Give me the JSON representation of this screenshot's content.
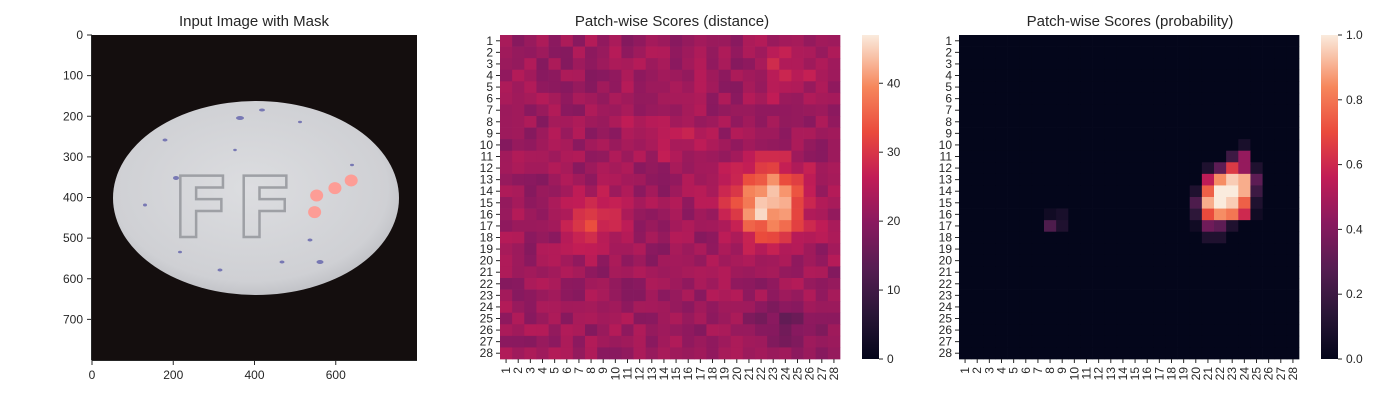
{
  "figure": {
    "panels": [
      {
        "title": "Input Image with Mask"
      },
      {
        "title": "Patch-wise Scores (distance)"
      },
      {
        "title": "Patch-wise Scores (probability)"
      }
    ]
  },
  "chart_data": [
    {
      "type": "image",
      "title": "Input Image with Mask",
      "xlabel": "",
      "ylabel": "",
      "xlim": [
        0,
        800
      ],
      "ylim": [
        800,
        0
      ],
      "xticks": [
        "0",
        "200",
        "400",
        "600"
      ],
      "yticks": [
        "0",
        "100",
        "200",
        "300",
        "400",
        "500",
        "600",
        "700"
      ],
      "image_content": {
        "pill_text": "FF",
        "mask_points": [
          [
            553,
            395
          ],
          [
            598,
            377
          ],
          [
            638,
            358
          ],
          [
            548,
            436
          ]
        ],
        "colors": {
          "background": "#140e0e",
          "pill": "#d2d3d6",
          "mask": "#ff9a92"
        }
      }
    },
    {
      "type": "heatmap",
      "title": "Patch-wise Scores (distance)",
      "rows": 28,
      "cols": 28,
      "xticks": [
        "1",
        "2",
        "3",
        "4",
        "5",
        "6",
        "7",
        "8",
        "9",
        "10",
        "11",
        "12",
        "13",
        "14",
        "15",
        "16",
        "17",
        "18",
        "19",
        "20",
        "21",
        "22",
        "23",
        "24",
        "25",
        "26",
        "27",
        "28"
      ],
      "yticks": [
        "1",
        "2",
        "3",
        "4",
        "5",
        "6",
        "7",
        "8",
        "9",
        "10",
        "11",
        "12",
        "13",
        "14",
        "15",
        "16",
        "17",
        "18",
        "19",
        "20",
        "21",
        "22",
        "23",
        "24",
        "25",
        "26",
        "27",
        "28"
      ],
      "colorbar": {
        "min": 0,
        "max": 47,
        "ticks": [
          "0",
          "10",
          "20",
          "30",
          "40"
        ]
      },
      "base_value": 22,
      "hotspots": [
        {
          "row": 15,
          "col": 22.5,
          "sigma_r": 2.2,
          "sigma_c": 2.0,
          "amplitude": 24
        },
        {
          "row": 16.5,
          "col": 8.3,
          "sigma_r": 1.5,
          "sigma_c": 1.6,
          "amplitude": 9
        },
        {
          "row": 9,
          "col": 14,
          "sigma_r": 1.5,
          "sigma_c": 2.0,
          "amplitude": 5
        },
        {
          "row": 25.5,
          "col": 24,
          "sigma_r": 1.4,
          "sigma_c": 2.0,
          "amplitude": -5
        },
        {
          "row": 4,
          "col": 24,
          "sigma_r": 1.5,
          "sigma_c": 1.5,
          "amplitude": 6
        }
      ],
      "noise_amplitude": 3
    },
    {
      "type": "heatmap",
      "title": "Patch-wise Scores (probability)",
      "rows": 28,
      "cols": 28,
      "xticks": [
        "1",
        "2",
        "3",
        "4",
        "5",
        "6",
        "7",
        "8",
        "9",
        "10",
        "11",
        "12",
        "13",
        "14",
        "15",
        "16",
        "17",
        "18",
        "19",
        "20",
        "21",
        "22",
        "23",
        "24",
        "25",
        "26",
        "27",
        "28"
      ],
      "yticks": [
        "1",
        "2",
        "3",
        "4",
        "5",
        "6",
        "7",
        "8",
        "9",
        "10",
        "11",
        "12",
        "13",
        "14",
        "15",
        "16",
        "17",
        "18",
        "19",
        "20",
        "21",
        "22",
        "23",
        "24",
        "25",
        "26",
        "27",
        "28"
      ],
      "colorbar": {
        "min": 0.0,
        "max": 1.0,
        "ticks": [
          "0.0",
          "0.2",
          "0.4",
          "0.6",
          "0.8",
          "1.0"
        ]
      },
      "cells": [
        {
          "row": 10,
          "col": 24,
          "value": 0.08
        },
        {
          "row": 11,
          "col": 23,
          "value": 0.2
        },
        {
          "row": 11,
          "col": 24,
          "value": 0.45
        },
        {
          "row": 12,
          "col": 21,
          "value": 0.1
        },
        {
          "row": 12,
          "col": 22,
          "value": 0.3
        },
        {
          "row": 12,
          "col": 23,
          "value": 0.65
        },
        {
          "row": 12,
          "col": 24,
          "value": 0.45
        },
        {
          "row": 12,
          "col": 25,
          "value": 0.1
        },
        {
          "row": 13,
          "col": 21,
          "value": 0.55
        },
        {
          "row": 13,
          "col": 22,
          "value": 0.85
        },
        {
          "row": 13,
          "col": 23,
          "value": 0.95
        },
        {
          "row": 13,
          "col": 24,
          "value": 0.9
        },
        {
          "row": 13,
          "col": 25,
          "value": 0.3
        },
        {
          "row": 14,
          "col": 20,
          "value": 0.1
        },
        {
          "row": 14,
          "col": 21,
          "value": 0.75
        },
        {
          "row": 14,
          "col": 22,
          "value": 1.0
        },
        {
          "row": 14,
          "col": 23,
          "value": 1.0
        },
        {
          "row": 14,
          "col": 24,
          "value": 0.9
        },
        {
          "row": 14,
          "col": 25,
          "value": 0.2
        },
        {
          "row": 15,
          "col": 20,
          "value": 0.25
        },
        {
          "row": 15,
          "col": 21,
          "value": 0.9
        },
        {
          "row": 15,
          "col": 22,
          "value": 1.0
        },
        {
          "row": 15,
          "col": 23,
          "value": 0.95
        },
        {
          "row": 15,
          "col": 24,
          "value": 0.75
        },
        {
          "row": 15,
          "col": 25,
          "value": 0.1
        },
        {
          "row": 16,
          "col": 20,
          "value": 0.15
        },
        {
          "row": 16,
          "col": 21,
          "value": 0.7
        },
        {
          "row": 16,
          "col": 22,
          "value": 0.85
        },
        {
          "row": 16,
          "col": 23,
          "value": 0.8
        },
        {
          "row": 16,
          "col": 24,
          "value": 0.6
        },
        {
          "row": 16,
          "col": 25,
          "value": 0.05
        },
        {
          "row": 17,
          "col": 20,
          "value": 0.05
        },
        {
          "row": 17,
          "col": 21,
          "value": 0.35
        },
        {
          "row": 17,
          "col": 22,
          "value": 0.3
        },
        {
          "row": 17,
          "col": 23,
          "value": 0.1
        },
        {
          "row": 18,
          "col": 21,
          "value": 0.1
        },
        {
          "row": 18,
          "col": 22,
          "value": 0.1
        },
        {
          "row": 16,
          "col": 8,
          "value": 0.05
        },
        {
          "row": 16,
          "col": 9,
          "value": 0.08
        },
        {
          "row": 17,
          "col": 8,
          "value": 0.25
        },
        {
          "row": 17,
          "col": 9,
          "value": 0.1
        }
      ]
    }
  ]
}
